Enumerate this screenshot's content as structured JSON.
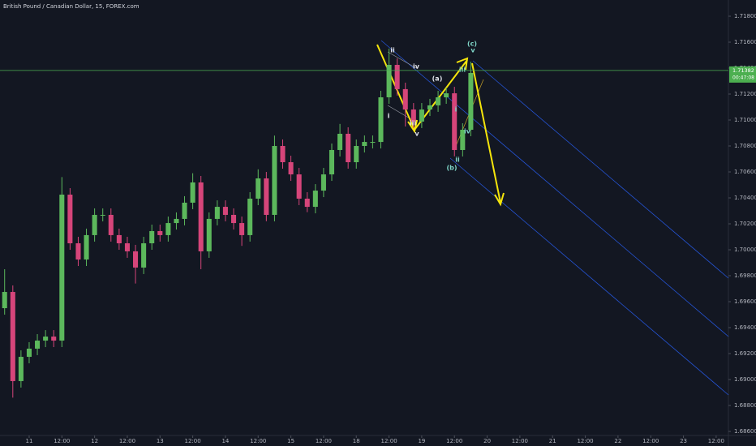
{
  "chart_data": {
    "type": "candlestick",
    "title": "British Pound / Canadian Dollar, 15, FOREX.com",
    "x": [
      -9,
      -6,
      -3,
      0,
      3,
      6,
      9,
      12,
      15,
      18,
      21,
      24,
      27,
      30,
      33,
      36,
      39,
      42,
      45,
      48,
      51,
      54,
      57,
      60,
      63,
      66,
      69,
      72,
      75,
      78,
      81,
      84,
      87,
      90,
      93,
      96,
      99,
      102,
      105,
      108,
      111,
      114,
      117,
      120,
      123,
      126,
      129,
      132,
      135,
      138,
      141,
      144,
      147,
      150,
      153,
      156,
      159,
      162
    ],
    "open": [
      1.6955,
      1.69675,
      1.68988,
      1.69175,
      1.69238,
      1.693,
      1.69331,
      1.693,
      1.70425,
      1.7005,
      1.69925,
      1.70113,
      1.70269,
      1.70269,
      1.70113,
      1.7005,
      1.69988,
      1.69863,
      1.7005,
      1.70144,
      1.70113,
      1.70206,
      1.70238,
      1.70363,
      1.70519,
      1.69988,
      1.70238,
      1.70331,
      1.70269,
      1.70206,
      1.70113,
      1.70394,
      1.7055,
      1.70269,
      1.708,
      1.70675,
      1.70581,
      1.70394,
      1.70331,
      1.70456,
      1.70581,
      1.70769,
      1.70894,
      1.70675,
      1.708,
      1.70831,
      1.70831,
      1.71175,
      1.71425,
      1.71238,
      1.71081,
      1.70988,
      1.71081,
      1.71113,
      1.71175,
      1.71206,
      1.70769,
      1.70925
    ],
    "high": [
      1.6985,
      1.69725,
      1.69225,
      1.69288,
      1.6935,
      1.69381,
      1.69381,
      1.7056,
      1.70475,
      1.701,
      1.70163,
      1.70319,
      1.70319,
      1.70319,
      1.70163,
      1.701,
      1.70038,
      1.701,
      1.70194,
      1.70194,
      1.70256,
      1.70288,
      1.70413,
      1.7059,
      1.70569,
      1.70288,
      1.70381,
      1.70381,
      1.70319,
      1.70256,
      1.70444,
      1.7062,
      1.706,
      1.7088,
      1.7085,
      1.70725,
      1.70631,
      1.70444,
      1.70506,
      1.70631,
      1.70819,
      1.7097,
      1.70944,
      1.7085,
      1.70881,
      1.70881,
      1.71225,
      1.7155,
      1.71475,
      1.71288,
      1.71131,
      1.71131,
      1.71163,
      1.71225,
      1.7125,
      1.71256,
      1.70975,
      1.7145
    ],
    "low": [
      1.695,
      1.6886,
      1.68938,
      1.69125,
      1.69188,
      1.6925,
      1.6925,
      1.6925,
      1.7,
      1.69875,
      1.69875,
      1.70063,
      1.70219,
      1.70063,
      1.7,
      1.69938,
      1.6974,
      1.69813,
      1.7,
      1.70063,
      1.70063,
      1.70156,
      1.70188,
      1.70313,
      1.6985,
      1.69938,
      1.70188,
      1.70219,
      1.70156,
      1.7003,
      1.70063,
      1.70344,
      1.7022,
      1.70219,
      1.70625,
      1.70531,
      1.70344,
      1.7029,
      1.70281,
      1.70406,
      1.70531,
      1.70719,
      1.70625,
      1.70625,
      1.7075,
      1.70781,
      1.70781,
      1.71125,
      1.71188,
      1.7095,
      1.70938,
      1.70938,
      1.71031,
      1.71063,
      1.71125,
      1.7072,
      1.70719,
      1.70875
    ],
    "close": [
      1.69675,
      1.68988,
      1.69175,
      1.69238,
      1.693,
      1.69331,
      1.693,
      1.70425,
      1.7005,
      1.69925,
      1.70113,
      1.70269,
      1.70269,
      1.70113,
      1.7005,
      1.69988,
      1.69863,
      1.7005,
      1.70144,
      1.70113,
      1.70206,
      1.70238,
      1.70363,
      1.70519,
      1.69988,
      1.70238,
      1.70331,
      1.70269,
      1.70206,
      1.70113,
      1.70394,
      1.7055,
      1.70269,
      1.708,
      1.70675,
      1.70581,
      1.70394,
      1.70331,
      1.70456,
      1.70581,
      1.70769,
      1.70894,
      1.70675,
      1.708,
      1.70831,
      1.70831,
      1.71175,
      1.71425,
      1.71238,
      1.71081,
      1.70988,
      1.71081,
      1.71113,
      1.71175,
      1.71206,
      1.70769,
      1.70925,
      1.71363
    ],
    "up_color": "#5cb85c",
    "down_color": "#d6457a",
    "last_price": 1.71382,
    "last_price_color": "#4caf50",
    "countdown": "00:47:08",
    "xlim": [
      -10.7,
      256.5
    ],
    "ylim": [
      1.68569,
      1.71925
    ],
    "xticks": [
      {
        "value": 0,
        "label": "11"
      },
      {
        "value": 12,
        "label": "12:00"
      },
      {
        "value": 24,
        "label": "12"
      },
      {
        "value": 36,
        "label": "12:00"
      },
      {
        "value": 48,
        "label": "13"
      },
      {
        "value": 60,
        "label": "12:00"
      },
      {
        "value": 72,
        "label": "14"
      },
      {
        "value": 84,
        "label": "12:00"
      },
      {
        "value": 96,
        "label": "15"
      },
      {
        "value": 108,
        "label": "12:00"
      },
      {
        "value": 120,
        "label": "18"
      },
      {
        "value": 132,
        "label": "12:00"
      },
      {
        "value": 144,
        "label": "19"
      },
      {
        "value": 156,
        "label": "12:00"
      },
      {
        "value": 168,
        "label": "20"
      },
      {
        "value": 180,
        "label": "12:00"
      },
      {
        "value": 192,
        "label": "21"
      },
      {
        "value": 204,
        "label": "12:00"
      },
      {
        "value": 216,
        "label": "22"
      },
      {
        "value": 228,
        "label": "12:00"
      },
      {
        "value": 240,
        "label": "23"
      },
      {
        "value": 252,
        "label": "12:00"
      }
    ],
    "yticks": [
      {
        "value": 1.686,
        "label": "1.68600"
      },
      {
        "value": 1.688,
        "label": "1.68800"
      },
      {
        "value": 1.69,
        "label": "1.69000"
      },
      {
        "value": 1.692,
        "label": "1.69200"
      },
      {
        "value": 1.694,
        "label": "1.69400"
      },
      {
        "value": 1.696,
        "label": "1.69600"
      },
      {
        "value": 1.698,
        "label": "1.69800"
      },
      {
        "value": 1.7,
        "label": "1.70000"
      },
      {
        "value": 1.702,
        "label": "1.70200"
      },
      {
        "value": 1.704,
        "label": "1.70400"
      },
      {
        "value": 1.706,
        "label": "1.70600"
      },
      {
        "value": 1.708,
        "label": "1.70800"
      },
      {
        "value": 1.71,
        "label": "1.71000"
      },
      {
        "value": 1.712,
        "label": "1.71200"
      },
      {
        "value": 1.714,
        "label": "1.71400"
      },
      {
        "value": 1.716,
        "label": "1.71600"
      },
      {
        "value": 1.718,
        "label": "1.71800"
      }
    ],
    "annotations": [
      {
        "text": "ii",
        "color": "#e0e3eb"
      },
      {
        "text": "i",
        "color": "#e0e3eb"
      },
      {
        "text": "iv",
        "color": "#e0e3eb"
      },
      {
        "text": "iii",
        "color": "#e0e3eb"
      },
      {
        "text": "v",
        "color": "#e0e3eb"
      },
      {
        "text": "(a)",
        "color": "#e0e3eb"
      },
      {
        "text": "iii",
        "color": "#7fd6c8"
      },
      {
        "text": "i",
        "color": "#7fd6c8"
      },
      {
        "text": "ii",
        "color": "#7fd6c8"
      },
      {
        "text": "(b)",
        "color": "#7fd6c8"
      },
      {
        "text": "iv",
        "color": "#7fd6c8"
      },
      {
        "text": "v",
        "color": "#7fd6c8"
      },
      {
        "text": "(c)",
        "color": "#7fd6c8"
      }
    ]
  }
}
